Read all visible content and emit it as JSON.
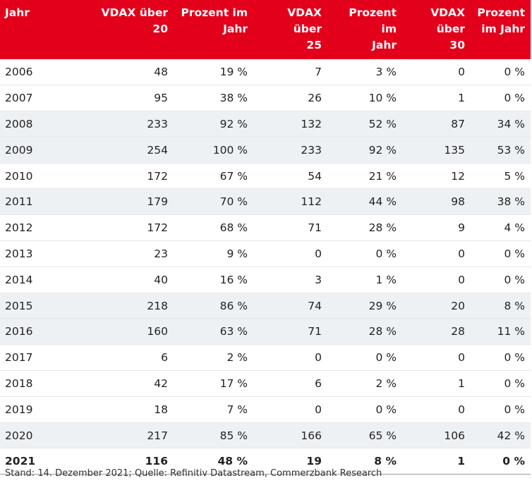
{
  "headers": [
    {
      "line1": "Jahr",
      "line2": ""
    },
    {
      "line1": "VDAX über",
      "line2": "20"
    },
    {
      "line1": "Prozent im",
      "line2": "Jahr"
    },
    {
      "line1": "VDAX über",
      "line2": "25"
    },
    {
      "line1": "Prozent im",
      "line2": "Jahr"
    },
    {
      "line1": "VDAX über",
      "line2": "30"
    },
    {
      "line1": "Prozent",
      "line2": "im Jahr"
    }
  ],
  "rows": [
    {
      "cells": [
        "2006",
        "48",
        "19 %",
        "7",
        "3 %",
        "0",
        "0 %"
      ],
      "shaded": false,
      "bold": false
    },
    {
      "cells": [
        "2007",
        "95",
        "38 %",
        "26",
        "10 %",
        "1",
        "0 %"
      ],
      "shaded": false,
      "bold": false
    },
    {
      "cells": [
        "2008",
        "233",
        "92 %",
        "132",
        "52 %",
        "87",
        "34 %"
      ],
      "shaded": true,
      "bold": false
    },
    {
      "cells": [
        "2009",
        "254",
        "100 %",
        "233",
        "92 %",
        "135",
        "53 %"
      ],
      "shaded": true,
      "bold": false
    },
    {
      "cells": [
        "2010",
        "172",
        "67 %",
        "54",
        "21 %",
        "12",
        "5 %"
      ],
      "shaded": false,
      "bold": false
    },
    {
      "cells": [
        "2011",
        "179",
        "70 %",
        "112",
        "44 %",
        "98",
        "38 %"
      ],
      "shaded": true,
      "bold": false
    },
    {
      "cells": [
        "2012",
        "172",
        "68 %",
        "71",
        "28 %",
        "9",
        "4 %"
      ],
      "shaded": false,
      "bold": false
    },
    {
      "cells": [
        "2013",
        "23",
        "9 %",
        "0",
        "0 %",
        "0",
        "0 %"
      ],
      "shaded": false,
      "bold": false
    },
    {
      "cells": [
        "2014",
        "40",
        "16 %",
        "3",
        "1 %",
        "0",
        "0 %"
      ],
      "shaded": false,
      "bold": false
    },
    {
      "cells": [
        "2015",
        "218",
        "86 %",
        "74",
        "29 %",
        "20",
        "8 %"
      ],
      "shaded": true,
      "bold": false
    },
    {
      "cells": [
        "2016",
        "160",
        "63 %",
        "71",
        "28 %",
        "28",
        "11 %"
      ],
      "shaded": true,
      "bold": false
    },
    {
      "cells": [
        "2017",
        "6",
        "2 %",
        "0",
        "0 %",
        "0",
        "0 %"
      ],
      "shaded": false,
      "bold": false
    },
    {
      "cells": [
        "2018",
        "42",
        "17 %",
        "6",
        "2 %",
        "1",
        "0 %"
      ],
      "shaded": false,
      "bold": false
    },
    {
      "cells": [
        "2019",
        "18",
        "7 %",
        "0",
        "0 %",
        "0",
        "0 %"
      ],
      "shaded": false,
      "bold": false
    },
    {
      "cells": [
        "2020",
        "217",
        "85 %",
        "166",
        "65 %",
        "106",
        "42 %"
      ],
      "shaded": true,
      "bold": false
    },
    {
      "cells": [
        "2021",
        "116",
        "48 %",
        "19",
        "8 %",
        "1",
        "0 %"
      ],
      "shaded": false,
      "bold": true
    }
  ],
  "footnote": "Stand: 14. Dezember 2021; Quelle: Refinitiv Datastream, Commerzbank Research",
  "colors": {
    "header_bg": "#e3001b",
    "header_text": "#ffffff",
    "shaded_row": "#eef1f4"
  }
}
